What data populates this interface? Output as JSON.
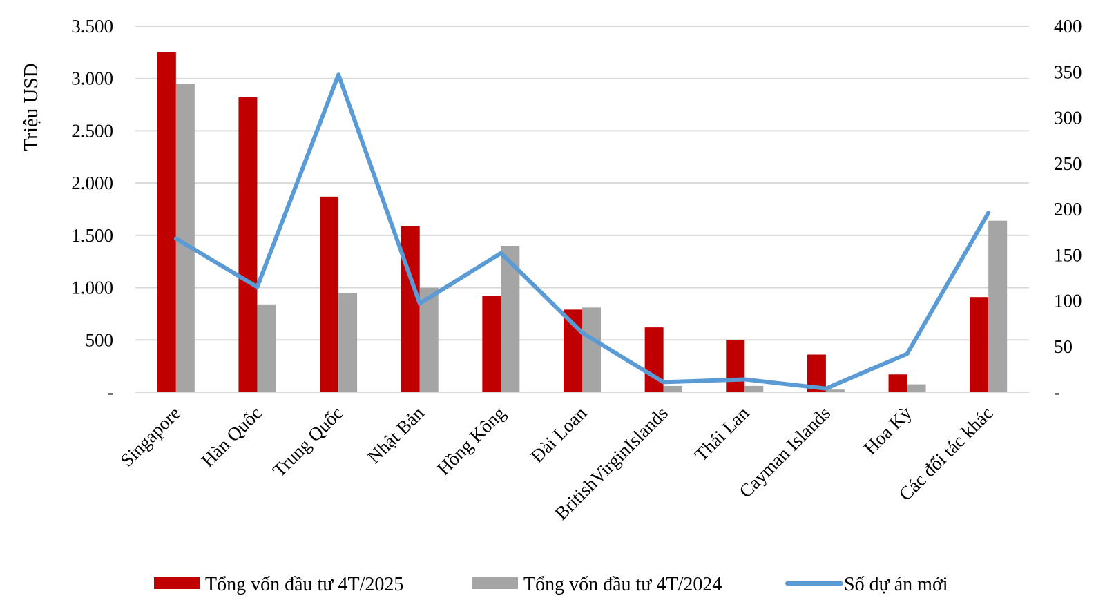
{
  "chart_data": {
    "type": "bar",
    "ylabel": "Triệu USD",
    "categories": [
      "Singapore",
      "Hàn Quốc",
      "Trung Quốc",
      "Nhật Bản",
      "Hồng Kông",
      "Đài Loan",
      "BritishVirginIslands",
      "Thái Lan",
      "Cayman Islands",
      "Hoa Kỳ",
      "Các đối tác khác"
    ],
    "series": [
      {
        "name": "Tổng vốn đầu tư 4T/2025",
        "kind": "bar",
        "axis": "left",
        "color": "#C00000",
        "values": [
          3250,
          2820,
          1870,
          1590,
          920,
          790,
          620,
          500,
          360,
          170,
          910
        ]
      },
      {
        "name": "Tổng vốn đầu tư 4T/2024",
        "kind": "bar",
        "axis": "left",
        "color": "#A5A5A5",
        "values": [
          2950,
          840,
          950,
          1000,
          1400,
          810,
          60,
          60,
          25,
          75,
          1640
        ]
      },
      {
        "name": "Số dự án mới",
        "kind": "line",
        "axis": "right",
        "color": "#5B9BD5",
        "values": [
          168,
          115,
          347,
          97,
          152,
          65,
          11,
          14,
          4,
          42,
          196
        ]
      }
    ],
    "y_left": {
      "min": 0,
      "max": 3500,
      "step": 500,
      "tick_labels": [
        "-",
        "500",
        "1.000",
        "1.500",
        "2.000",
        "2.500",
        "3.000",
        "3.500"
      ]
    },
    "y_right": {
      "min": 0,
      "max": 400,
      "step": 50,
      "tick_labels": [
        "-",
        "50",
        "100",
        "150",
        "200",
        "250",
        "300",
        "350",
        "400"
      ]
    },
    "grid": true,
    "legend_position": "bottom"
  }
}
